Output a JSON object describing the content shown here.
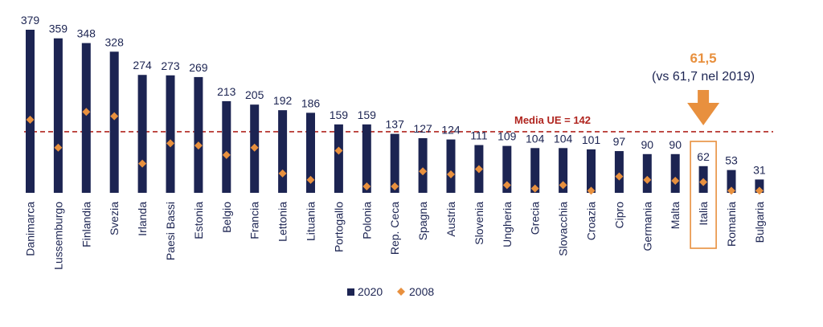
{
  "chart_data": {
    "type": "bar",
    "categories": [
      "Danimarca",
      "Lussemburgo",
      "Finlandia",
      "Svezia",
      "Irlanda",
      "Paesi Bassi",
      "Estonia",
      "Belgio",
      "Francia",
      "Lettonia",
      "Lituania",
      "Portogallo",
      "Polonia",
      "Rep. Ceca",
      "Spagna",
      "Austria",
      "Slovenia",
      "Ungheria",
      "Grecia",
      "Slovacchia",
      "Croazia",
      "Cipro",
      "Germania",
      "Malta",
      "Italia",
      "Romania",
      "Bulgaria"
    ],
    "series": [
      {
        "name": "2020",
        "type": "bar",
        "color": "#1c2452",
        "values": [
          379,
          359,
          348,
          328,
          274,
          273,
          269,
          213,
          205,
          192,
          186,
          159,
          159,
          137,
          127,
          124,
          111,
          109,
          104,
          104,
          101,
          97,
          90,
          90,
          62,
          53,
          31
        ],
        "labels": [
          "379",
          "359",
          "348",
          "328",
          "274",
          "273",
          "269",
          "213",
          "205",
          "192",
          "186",
          "159",
          "159",
          "137",
          "127",
          "124",
          "111",
          "109",
          "104",
          "104",
          "101",
          "97",
          "90",
          "90",
          "62",
          "53",
          "31"
        ]
      },
      {
        "name": "2008",
        "type": "scatter",
        "marker": "diamond",
        "color": "#e8903e",
        "values": [
          170,
          105,
          188,
          178,
          68,
          115,
          110,
          88,
          105,
          45,
          30,
          98,
          15,
          15,
          50,
          43,
          55,
          18,
          10,
          18,
          5,
          38,
          30,
          28,
          25,
          5,
          5
        ]
      }
    ],
    "ylim": [
      0,
      400
    ],
    "reference_line": {
      "label": "Media UE = 142",
      "value": 142,
      "color": "#b0251f"
    },
    "highlight": {
      "category": "Italia",
      "title": "61,5",
      "subtitle": "(vs 61,7 nel 2019)",
      "color": "#e8903e"
    },
    "legend": {
      "position": "bottom-center",
      "entries": [
        "2020",
        "2008"
      ]
    },
    "title": "",
    "xlabel": "",
    "ylabel": ""
  }
}
